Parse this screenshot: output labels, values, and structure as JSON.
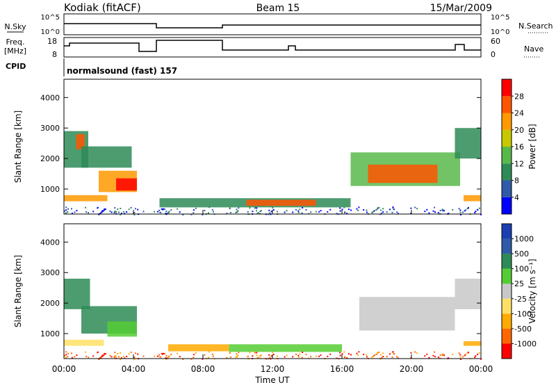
{
  "header": {
    "station": "Kodiak (fitACF)",
    "beam": "Beam 15",
    "date": "15/Mar/2009"
  },
  "aux_panels": {
    "nsky_label": "N.Sky",
    "nsky_ticks": [
      "10^5",
      "10^0"
    ],
    "nsearch_label": "N.Search",
    "nsearch_ticks": [
      "10^5",
      "10^0"
    ],
    "freq_label": "Freq.",
    "freq_unit": "[MHz]",
    "freq_ticks": [
      "18",
      "8"
    ],
    "nave_label": "Nave",
    "nave_ticks": [
      "60",
      "0"
    ],
    "cpid_label": "CPID",
    "cpid_text": "normalsound (fast) 157"
  },
  "chart_data": [
    {
      "type": "heatmap",
      "name": "power-panel",
      "ylabel": "Slant Range [km]",
      "ylim": [
        180,
        4600
      ],
      "yticks": [
        "1000",
        "2000",
        "3000",
        "4000"
      ],
      "xlim": [
        0,
        24
      ],
      "colorbar_label": "Power [dB]",
      "colorbar_ticks": [
        "4",
        "8",
        "12",
        "16",
        "20",
        "24",
        "28"
      ],
      "colors": [
        "#0000ff",
        "#2f5aa8",
        "#2e8b57",
        "#59b84a",
        "#c8c800",
        "#ff9900",
        "#ff5500",
        "#ff0000"
      ],
      "regions": [
        {
          "t0": 0.0,
          "t1": 1.4,
          "r0": 1700,
          "r1": 2900,
          "level": 2
        },
        {
          "t0": 0.7,
          "t1": 1.2,
          "r0": 2300,
          "r1": 2800,
          "level": 6
        },
        {
          "t0": 1.0,
          "t1": 3.9,
          "r0": 1700,
          "r1": 2400,
          "level": 2
        },
        {
          "t0": 2.0,
          "t1": 4.2,
          "r0": 900,
          "r1": 1600,
          "level": 5
        },
        {
          "t0": 3.0,
          "t1": 4.2,
          "r0": 950,
          "r1": 1350,
          "level": 7
        },
        {
          "t0": 0.0,
          "t1": 2.5,
          "r0": 600,
          "r1": 800,
          "level": 5
        },
        {
          "t0": 5.5,
          "t1": 16.5,
          "r0": 400,
          "r1": 700,
          "level": 2
        },
        {
          "t0": 10.5,
          "t1": 14.5,
          "r0": 450,
          "r1": 650,
          "level": 6
        },
        {
          "t0": 16.5,
          "t1": 22.8,
          "r0": 1100,
          "r1": 2200,
          "level": 3
        },
        {
          "t0": 17.5,
          "t1": 21.5,
          "r0": 1200,
          "r1": 1800,
          "level": 6
        },
        {
          "t0": 22.5,
          "t1": 24.0,
          "r0": 2000,
          "r1": 3000,
          "level": 2
        },
        {
          "t0": 23.0,
          "t1": 24.0,
          "r0": 600,
          "r1": 800,
          "level": 5
        }
      ]
    },
    {
      "type": "heatmap",
      "name": "velocity-panel",
      "ylabel": "Slant Range [km]",
      "ylim": [
        180,
        4600
      ],
      "yticks": [
        "1000",
        "2000",
        "3000",
        "4000"
      ],
      "xlim": [
        0,
        24
      ],
      "xticks": [
        "00:00",
        "04:00",
        "08:00",
        "12:00",
        "16:00",
        "20:00",
        "00:00"
      ],
      "xlabel": "Time UT",
      "colorbar_label": "Velocity [m s⁻¹]",
      "colorbar_ticks": [
        "-1000",
        "-500",
        "-100",
        "-25",
        "25",
        "100",
        "500",
        "1000"
      ],
      "colors": [
        "#ff0000",
        "#ff6600",
        "#ffaa00",
        "#ffe066",
        "#c8c8c8",
        "#55cc33",
        "#2e8b57",
        "#2f5aa8",
        "#1a3fb0"
      ],
      "regions": [
        {
          "t0": 0.0,
          "t1": 1.5,
          "r0": 1800,
          "r1": 2800,
          "level": 6
        },
        {
          "t0": 1.0,
          "t1": 4.2,
          "r0": 1000,
          "r1": 1900,
          "level": 6
        },
        {
          "t0": 2.5,
          "t1": 4.2,
          "r0": 900,
          "r1": 1400,
          "level": 5
        },
        {
          "t0": 0.0,
          "t1": 2.3,
          "r0": 600,
          "r1": 800,
          "level": 3
        },
        {
          "t0": 6.0,
          "t1": 9.5,
          "r0": 420,
          "r1": 650,
          "level": 2
        },
        {
          "t0": 9.5,
          "t1": 16.0,
          "r0": 400,
          "r1": 650,
          "level": 5
        },
        {
          "t0": 17.0,
          "t1": 22.5,
          "r0": 1100,
          "r1": 2200,
          "level": 4
        },
        {
          "t0": 22.5,
          "t1": 24.0,
          "r0": 1800,
          "r1": 2800,
          "level": 4
        },
        {
          "t0": 23.0,
          "t1": 24.0,
          "r0": 600,
          "r1": 750,
          "level": 2
        }
      ]
    }
  ]
}
